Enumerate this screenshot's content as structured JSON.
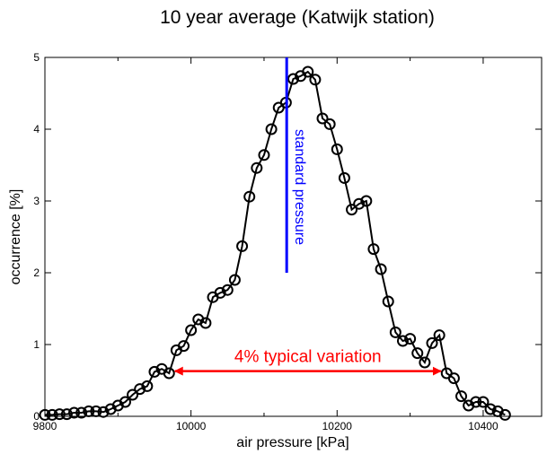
{
  "chart_data": {
    "type": "line",
    "title": "10 year average (Katwijk station)",
    "xlabel": "air pressure [kPa]",
    "ylabel": "occurrence [%]",
    "xlim": [
      9800,
      10480
    ],
    "ylim": [
      0,
      5
    ],
    "xticks": [
      9800,
      10000,
      10200,
      10400
    ],
    "yticks": [
      0,
      1,
      2,
      3,
      4,
      5
    ],
    "grid": false,
    "series": [
      {
        "color": "#000000",
        "marker": "open-circle",
        "x": [
          9800,
          9810,
          9820,
          9830,
          9840,
          9850,
          9860,
          9870,
          9880,
          9890,
          9900,
          9910,
          9920,
          9930,
          9940,
          9950,
          9960,
          9970,
          9980,
          9990,
          10000,
          10010,
          10020,
          10030,
          10040,
          10050,
          10060,
          10070,
          10080,
          10090,
          10100,
          10110,
          10120,
          10130,
          10140,
          10150,
          10160,
          10170,
          10180,
          10190,
          10200,
          10210,
          10220,
          10230,
          10240,
          10250,
          10260,
          10270,
          10280,
          10290,
          10300,
          10310,
          10320,
          10330,
          10340,
          10350,
          10360,
          10370,
          10380,
          10390,
          10400,
          10410,
          10420,
          10430
        ],
        "y": [
          0.02,
          0.02,
          0.03,
          0.03,
          0.05,
          0.05,
          0.07,
          0.07,
          0.06,
          0.1,
          0.15,
          0.2,
          0.3,
          0.38,
          0.42,
          0.62,
          0.66,
          0.6,
          0.92,
          0.98,
          1.2,
          1.35,
          1.3,
          1.66,
          1.72,
          1.76,
          1.9,
          2.37,
          3.06,
          3.46,
          3.64,
          4.0,
          4.3,
          4.37,
          4.7,
          4.74,
          4.8,
          4.69,
          4.15,
          4.07,
          3.72,
          3.32,
          2.88,
          2.96,
          3.0,
          2.33,
          2.05,
          1.6,
          1.17,
          1.05,
          1.08,
          0.88,
          0.75,
          1.02,
          1.13,
          0.6,
          0.53,
          0.28,
          0.15,
          0.2,
          0.2,
          0.1,
          0.07,
          0.02
        ]
      }
    ],
    "annotations": {
      "standard_pressure": {
        "label": "standard pressure",
        "x": 10131,
        "y_from": 2.0,
        "y_to": 5.0,
        "color": "#0000ff"
      },
      "variation": {
        "label": "4% typical variation",
        "x_from": 9978,
        "x_to": 10342,
        "y": 0.63,
        "color": "#ff0000"
      }
    }
  }
}
